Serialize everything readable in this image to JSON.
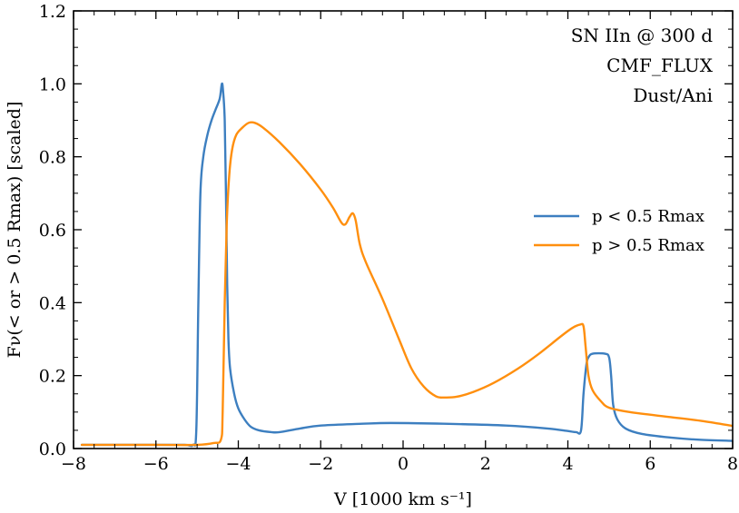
{
  "chart_data": {
    "type": "line",
    "xlabel": "V [1000 km s⁻¹]",
    "ylabel": "Fν(< or > 0.5 Rmax) [scaled]",
    "xlim": [
      -8,
      8
    ],
    "ylim": [
      0,
      1.2
    ],
    "xticks": [
      -8,
      -6,
      -4,
      -2,
      0,
      2,
      4,
      6,
      8
    ],
    "xtick_labels": [
      "−8",
      "−6",
      "−4",
      "−2",
      "0",
      "2",
      "4",
      "6",
      "8"
    ],
    "yticks": [
      0.0,
      0.2,
      0.4,
      0.6,
      0.8,
      1.0,
      1.2
    ],
    "ytick_labels": [
      "0.0",
      "0.2",
      "0.4",
      "0.6",
      "0.8",
      "1.0",
      "1.2"
    ],
    "grid": false,
    "annotations": [
      "SN IIn @ 300 d",
      "CMF_FLUX",
      "Dust/Ani"
    ],
    "legend_position": "right",
    "series": [
      {
        "name": "p < 0.5 Rmax",
        "color": "#3d7fc0",
        "points": [
          [
            -7.8,
            0.01
          ],
          [
            -6.0,
            0.01
          ],
          [
            -5.3,
            0.01
          ],
          [
            -5.1,
            0.01
          ],
          [
            -5.02,
            0.05
          ],
          [
            -4.97,
            0.4
          ],
          [
            -4.92,
            0.7
          ],
          [
            -4.85,
            0.8
          ],
          [
            -4.75,
            0.86
          ],
          [
            -4.65,
            0.9
          ],
          [
            -4.55,
            0.93
          ],
          [
            -4.45,
            0.96
          ],
          [
            -4.4,
            1.0
          ],
          [
            -4.37,
            0.98
          ],
          [
            -4.33,
            0.9
          ],
          [
            -4.3,
            0.7
          ],
          [
            -4.27,
            0.45
          ],
          [
            -4.24,
            0.3
          ],
          [
            -4.2,
            0.22
          ],
          [
            -4.1,
            0.15
          ],
          [
            -4.0,
            0.11
          ],
          [
            -3.85,
            0.08
          ],
          [
            -3.7,
            0.06
          ],
          [
            -3.5,
            0.05
          ],
          [
            -3.2,
            0.045
          ],
          [
            -3.0,
            0.045
          ],
          [
            -2.5,
            0.055
          ],
          [
            -2.0,
            0.063
          ],
          [
            -1.0,
            0.068
          ],
          [
            -0.3,
            0.07
          ],
          [
            1.0,
            0.068
          ],
          [
            2.5,
            0.063
          ],
          [
            3.5,
            0.055
          ],
          [
            4.0,
            0.048
          ],
          [
            4.2,
            0.045
          ],
          [
            4.32,
            0.05
          ],
          [
            4.38,
            0.15
          ],
          [
            4.45,
            0.23
          ],
          [
            4.5,
            0.25
          ],
          [
            4.6,
            0.26
          ],
          [
            4.9,
            0.26
          ],
          [
            5.0,
            0.25
          ],
          [
            5.05,
            0.2
          ],
          [
            5.1,
            0.12
          ],
          [
            5.2,
            0.08
          ],
          [
            5.4,
            0.055
          ],
          [
            5.8,
            0.04
          ],
          [
            6.5,
            0.03
          ],
          [
            7.2,
            0.024
          ],
          [
            8.0,
            0.021
          ]
        ]
      },
      {
        "name": "p > 0.5 Rmax",
        "color": "#ff8f0e",
        "points": [
          [
            -7.8,
            0.01
          ],
          [
            -6.0,
            0.01
          ],
          [
            -5.0,
            0.01
          ],
          [
            -4.6,
            0.015
          ],
          [
            -4.42,
            0.025
          ],
          [
            -4.38,
            0.1
          ],
          [
            -4.33,
            0.4
          ],
          [
            -4.28,
            0.62
          ],
          [
            -4.22,
            0.75
          ],
          [
            -4.15,
            0.82
          ],
          [
            -4.05,
            0.86
          ],
          [
            -3.9,
            0.88
          ],
          [
            -3.75,
            0.893
          ],
          [
            -3.6,
            0.893
          ],
          [
            -3.4,
            0.88
          ],
          [
            -3.0,
            0.84
          ],
          [
            -2.5,
            0.78
          ],
          [
            -2.0,
            0.71
          ],
          [
            -1.7,
            0.66
          ],
          [
            -1.5,
            0.62
          ],
          [
            -1.4,
            0.615
          ],
          [
            -1.3,
            0.635
          ],
          [
            -1.22,
            0.645
          ],
          [
            -1.15,
            0.625
          ],
          [
            -1.05,
            0.56
          ],
          [
            -0.9,
            0.51
          ],
          [
            -0.5,
            0.41
          ],
          [
            -0.1,
            0.3
          ],
          [
            0.2,
            0.22
          ],
          [
            0.5,
            0.17
          ],
          [
            0.8,
            0.143
          ],
          [
            1.0,
            0.14
          ],
          [
            1.3,
            0.142
          ],
          [
            1.7,
            0.155
          ],
          [
            2.2,
            0.18
          ],
          [
            2.8,
            0.22
          ],
          [
            3.3,
            0.26
          ],
          [
            3.8,
            0.305
          ],
          [
            4.1,
            0.33
          ],
          [
            4.3,
            0.34
          ],
          [
            4.38,
            0.335
          ],
          [
            4.43,
            0.28
          ],
          [
            4.5,
            0.2
          ],
          [
            4.6,
            0.16
          ],
          [
            4.8,
            0.13
          ],
          [
            5.0,
            0.112
          ],
          [
            5.5,
            0.1
          ],
          [
            6.5,
            0.086
          ],
          [
            7.3,
            0.075
          ],
          [
            8.0,
            0.062
          ]
        ]
      }
    ]
  }
}
